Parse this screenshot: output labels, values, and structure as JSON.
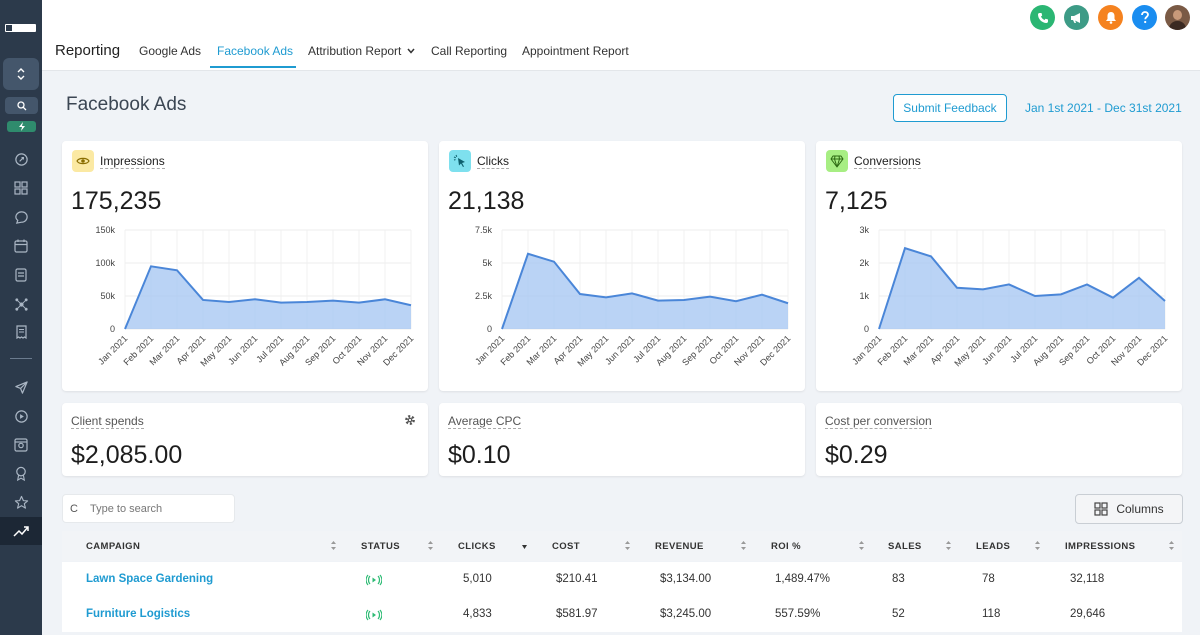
{
  "header": {
    "title": "Reporting",
    "tabs": [
      {
        "label": "Google Ads"
      },
      {
        "label": "Facebook Ads"
      },
      {
        "label": "Attribution Report"
      },
      {
        "label": "Call Reporting"
      },
      {
        "label": "Appointment Report"
      }
    ],
    "active_tab": "Facebook Ads"
  },
  "page": {
    "title": "Facebook Ads",
    "feedback_label": "Submit Feedback",
    "date_range": "Jan 1st 2021 - Dec 31st 2021"
  },
  "metrics": [
    {
      "label": "Impressions",
      "value": "175,235",
      "icon": "eye-icon",
      "icon_bg": "#fbe9a3",
      "icon_color": "#8a6d00",
      "y_ticks": [
        "150k",
        "100k",
        "50k",
        "0"
      ],
      "y_max": 150000,
      "chart_data": {
        "type": "area",
        "x": [
          "Jan 2021",
          "Feb 2021",
          "Mar 2021",
          "Apr 2021",
          "May 2021",
          "Jun 2021",
          "Jul 2021",
          "Aug 2021",
          "Sep 2021",
          "Oct 2021",
          "Nov 2021",
          "Dec 2021"
        ],
        "values": [
          0,
          95000,
          89000,
          44000,
          41000,
          45000,
          40000,
          41000,
          43000,
          40000,
          45000,
          36000
        ],
        "ylim": [
          0,
          150000
        ]
      }
    },
    {
      "label": "Clicks",
      "value": "21,138",
      "icon": "cursor-click-icon",
      "icon_bg": "#7ee0ee",
      "icon_color": "#0d5f6d",
      "y_ticks": [
        "7.5k",
        "5k",
        "2.5k",
        "0"
      ],
      "y_max": 7500,
      "chart_data": {
        "type": "area",
        "x": [
          "Jan 2021",
          "Feb 2021",
          "Mar 2021",
          "Apr 2021",
          "May 2021",
          "Jun 2021",
          "Jul 2021",
          "Aug 2021",
          "Sep 2021",
          "Oct 2021",
          "Nov 2021",
          "Dec 2021"
        ],
        "values": [
          0,
          5700,
          5100,
          2650,
          2400,
          2700,
          2150,
          2200,
          2450,
          2100,
          2600,
          1950
        ],
        "ylim": [
          0,
          7500
        ]
      }
    },
    {
      "label": "Conversions",
      "value": "7,125",
      "icon": "diamond-icon",
      "icon_bg": "#a7ee83",
      "icon_color": "#2d6a13",
      "y_ticks": [
        "3k",
        "2k",
        "1k",
        "0"
      ],
      "y_max": 3000,
      "chart_data": {
        "type": "area",
        "x": [
          "Jan 2021",
          "Feb 2021",
          "Mar 2021",
          "Apr 2021",
          "May 2021",
          "Jun 2021",
          "Jul 2021",
          "Aug 2021",
          "Sep 2021",
          "Oct 2021",
          "Nov 2021",
          "Dec 2021"
        ],
        "values": [
          0,
          2450,
          2200,
          1250,
          1200,
          1350,
          1000,
          1050,
          1350,
          950,
          1550,
          850
        ],
        "ylim": [
          0,
          3000
        ]
      }
    }
  ],
  "stats": [
    {
      "label": "Client spends",
      "value": "$2,085.00"
    },
    {
      "label": "Average CPC",
      "value": "$0.10"
    },
    {
      "label": "Cost per conversion",
      "value": "$0.29"
    }
  ],
  "search": {
    "prefix": "C",
    "placeholder": "Type to search"
  },
  "columns_label": "Columns",
  "table": {
    "headers": [
      "CAMPAIGN",
      "STATUS",
      "CLICKS",
      "COST",
      "REVENUE",
      "ROI %",
      "SALES",
      "LEADS",
      "IMPRESSIONS"
    ],
    "sorted_column": "CLICKS",
    "rows": [
      {
        "campaign": "Lawn Space Gardening",
        "status": "active",
        "clicks": "5,010",
        "cost": "$210.41",
        "revenue": "$3,134.00",
        "roi": "1,489.47%",
        "sales": "83",
        "leads": "78",
        "impressions": "32,118"
      },
      {
        "campaign": "Furniture Logistics",
        "status": "active",
        "clicks": "4,833",
        "cost": "$581.97",
        "revenue": "$3,245.00",
        "roi": "557.59%",
        "sales": "52",
        "leads": "118",
        "impressions": "29,646"
      }
    ]
  },
  "colors": {
    "accent": "#1f9bd1",
    "sidebar": "#2c3a4b",
    "area_fill": "#a9c8f3",
    "area_line": "#4a86d8",
    "status_active": "#2dbb74",
    "phone_btn": "#2bb673",
    "megaphone_btn": "#3d9b86",
    "bell_btn": "#f5821f",
    "help_btn": "#1a8df0"
  }
}
